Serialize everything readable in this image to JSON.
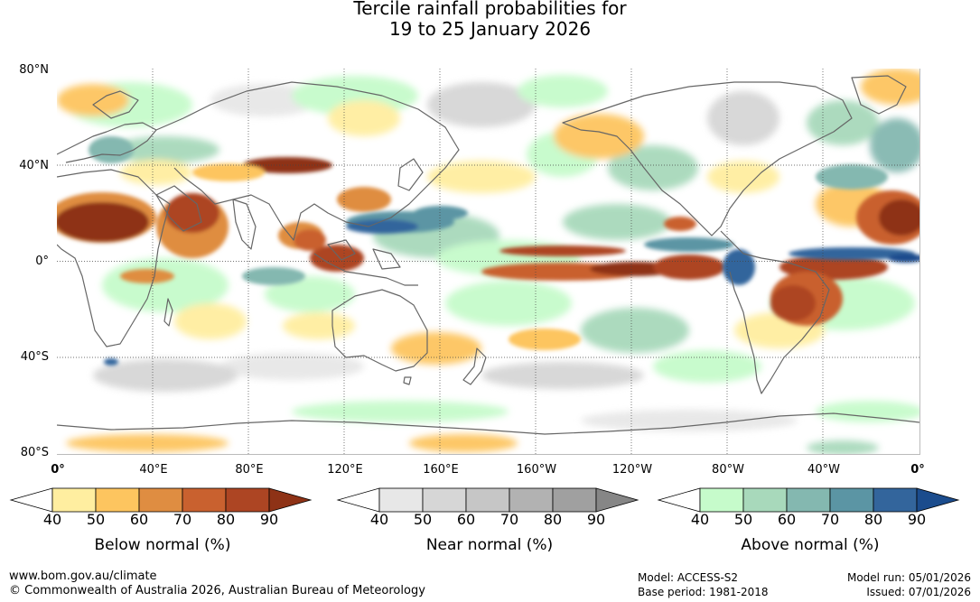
{
  "title": {
    "line1": "Tercile rainfall probabilities for",
    "line2": "19 to 25 January 2026"
  },
  "map": {
    "lat_labels": [
      "80°N",
      "40°N",
      "0°",
      "40°S",
      "80°S"
    ],
    "lon_labels": [
      "0°",
      "40°E",
      "80°E",
      "120°E",
      "160°E",
      "160°W",
      "120°W",
      "80°W",
      "40°W",
      "0°"
    ],
    "features": [
      "coastlines",
      "graticule"
    ]
  },
  "legends": [
    {
      "name": "below-normal",
      "title": "Below normal (%)",
      "ticks": [
        "40",
        "50",
        "60",
        "70",
        "80",
        "90"
      ],
      "colors": [
        "#ffeea0",
        "#fdc55f",
        "#df8d41",
        "#c9612f",
        "#ad4523",
        "#8e3216"
      ]
    },
    {
      "name": "near-normal",
      "title": "Near normal (%)",
      "ticks": [
        "40",
        "50",
        "60",
        "70",
        "80",
        "90"
      ],
      "colors": [
        "#e7e7e7",
        "#d6d6d6",
        "#c6c6c6",
        "#b2b2b2",
        "#a0a0a0",
        "#868686"
      ]
    },
    {
      "name": "above-normal",
      "title": "Above normal (%)",
      "ticks": [
        "40",
        "50",
        "60",
        "70",
        "80",
        "90"
      ],
      "colors": [
        "#c6fbcb",
        "#a8d9bb",
        "#84b8b0",
        "#5b95a4",
        "#33659c",
        "#1b4c8d"
      ]
    }
  ],
  "footer": {
    "website": "www.bom.gov.au/climate",
    "copyright": "© Commonwealth of Australia 2026, Australian Bureau of Meteorology",
    "model": "Model: ACCESS-S2",
    "base_period": "Base period: 1981-2018",
    "model_run": "Model run: 05/01/2026",
    "issued": "Issued: 07/01/2026"
  }
}
